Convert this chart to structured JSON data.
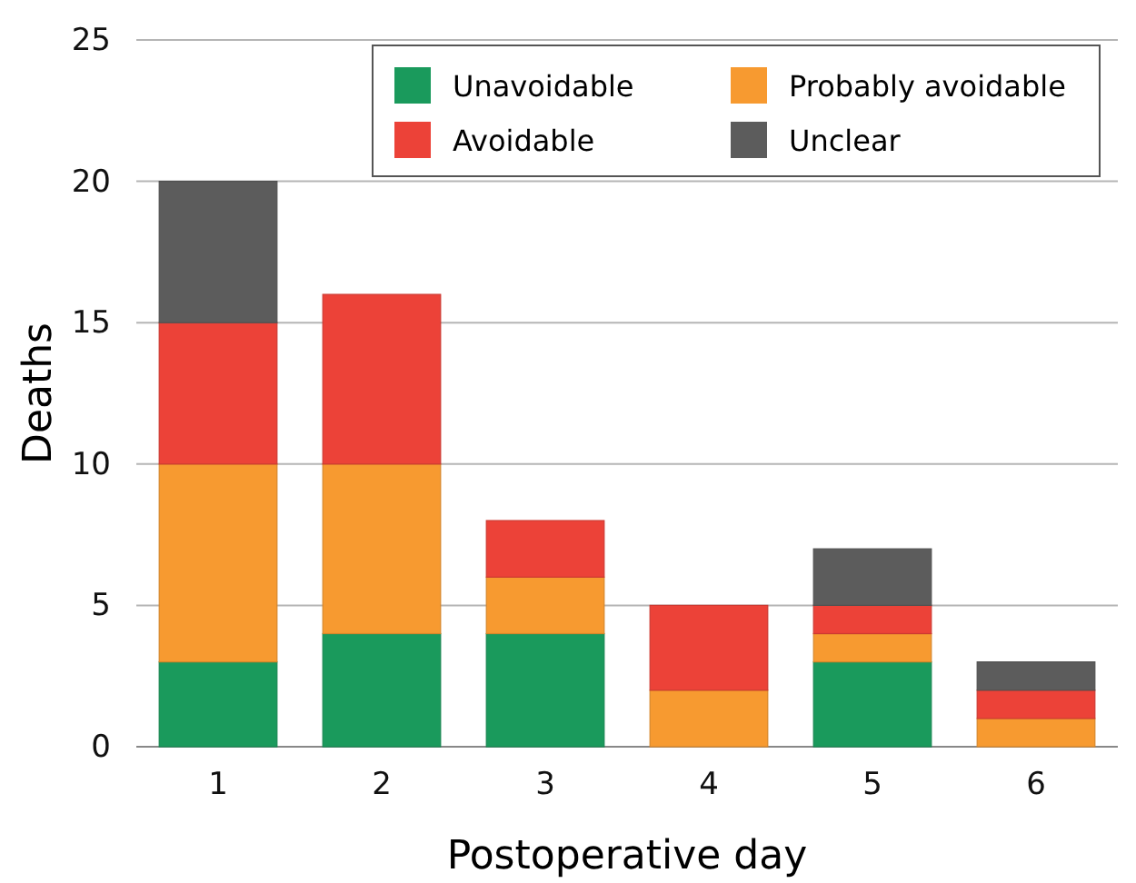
{
  "chart_data": {
    "type": "bar",
    "stacked": true,
    "xlabel": "Postoperative day",
    "ylabel": "Deaths",
    "categories": [
      "1",
      "2",
      "3",
      "4",
      "5",
      "6"
    ],
    "series": [
      {
        "name": "Unavoidable",
        "color": "#1a9a5c",
        "values": [
          3,
          4,
          4,
          0,
          3,
          0
        ]
      },
      {
        "name": "Probably avoidable",
        "color": "#f79a30",
        "values": [
          7,
          6,
          2,
          2,
          1,
          1
        ]
      },
      {
        "name": "Avoidable",
        "color": "#ec4238",
        "values": [
          5,
          6,
          2,
          3,
          1,
          1
        ]
      },
      {
        "name": "Unclear",
        "color": "#5c5c5c",
        "values": [
          5,
          0,
          0,
          0,
          2,
          1
        ]
      }
    ],
    "ylim": [
      0,
      25
    ],
    "yticks": [
      0,
      5,
      10,
      15,
      20,
      25
    ],
    "grid": "y",
    "legend": "top right"
  }
}
